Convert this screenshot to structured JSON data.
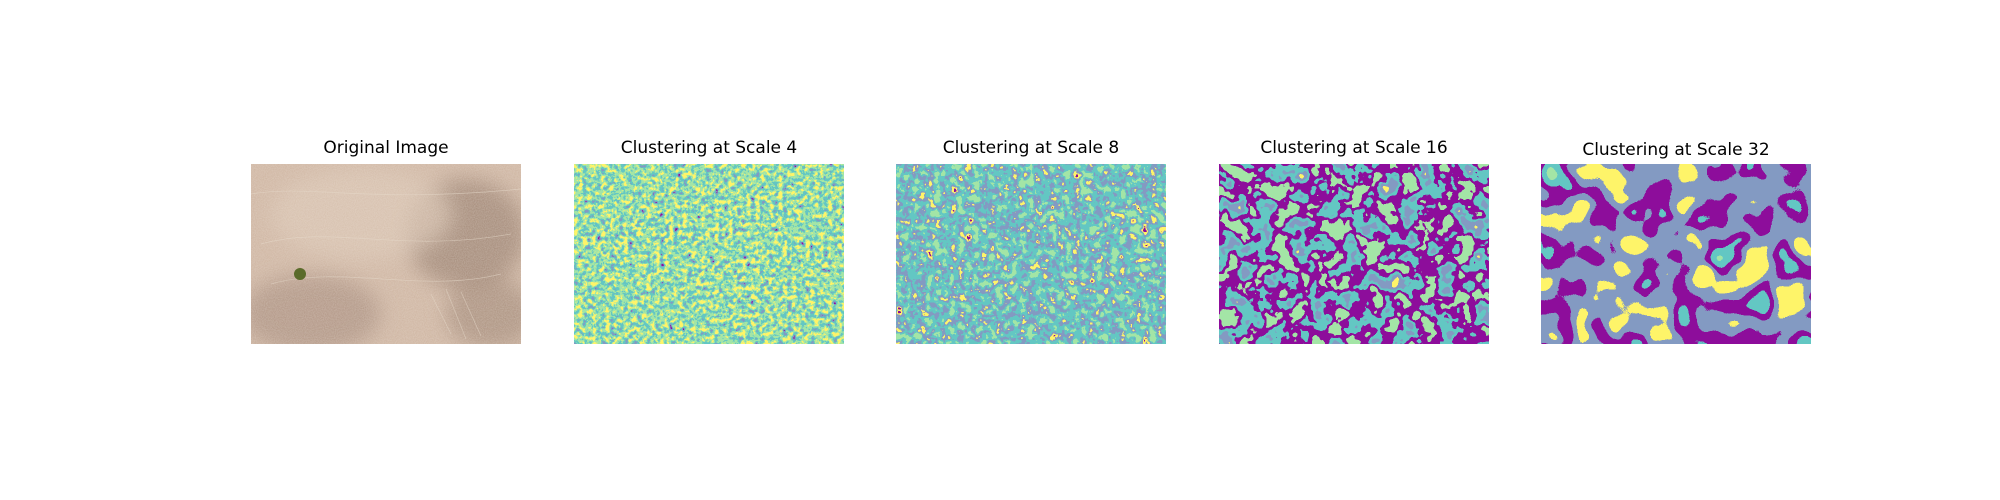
{
  "figure": {
    "panels": [
      {
        "title": "Original Image",
        "kind": "photo"
      },
      {
        "title": "Clustering at Scale 4",
        "kind": "cluster",
        "scale": 4
      },
      {
        "title": "Clustering at Scale 8",
        "kind": "cluster",
        "scale": 8
      },
      {
        "title": "Clustering at Scale 16",
        "kind": "cluster",
        "scale": 16
      },
      {
        "title": "Clustering at Scale 32",
        "kind": "cluster",
        "scale": 32
      }
    ],
    "colormap": [
      "#440154",
      "#3b528b",
      "#21918c",
      "#5ec962",
      "#fde725"
    ],
    "photo_colors": {
      "light": "#cdb39f",
      "dark": "#9c8170",
      "tree": "#5a6b2a"
    }
  }
}
